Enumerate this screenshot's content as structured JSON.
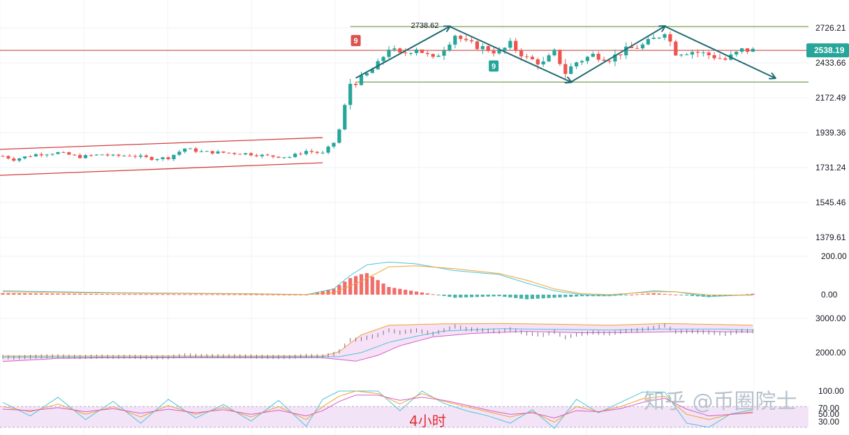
{
  "colors": {
    "up": "#26a69a",
    "down": "#ef5350",
    "channel": "#d23f3f",
    "range": "#5b8a2c",
    "current_line": "#c0392b",
    "arrow": "#1f6b73",
    "price_badge": "#26a69a",
    "td_red": "#d9534f",
    "td_green": "#26a69a",
    "macd_fast": "#4ec3d8",
    "macd_slow": "#f0a12e",
    "boll_upper": "#f0a12e",
    "boll_mid": "#4ec3d8",
    "boll_lower": "#d35fc9",
    "boll_fill": "#f4d9f4",
    "kdj_k": "#4ec3d8",
    "kdj_d": "#f0a12e",
    "kdj_j": "#d35fc9",
    "rsi_band": "#f3e3f7"
  },
  "chart_data": [
    {
      "type": "candlestick",
      "title": "",
      "timeframe_label": "4小时",
      "y_ticks": [
        "2726.21",
        "2433.66",
        "2172.49",
        "1939.36",
        "1731.24",
        "1545.46",
        "1379.61"
      ],
      "current_price": "2538.19",
      "high_annotation": "2738.62",
      "td_markers": [
        {
          "label": "9",
          "color": "red",
          "bar": 64,
          "price": 2620
        },
        {
          "label": "9",
          "color": "green",
          "bar": 89,
          "price": 2410
        }
      ],
      "levels": {
        "resistance": 2738,
        "support": 2290,
        "current": 2538.19
      },
      "early_channel": {
        "upper_start": 1840,
        "upper_end": 1910,
        "lower_start": 1690,
        "lower_end": 1760
      },
      "path_points": [
        [
          64,
          2320
        ],
        [
          81,
          2738
        ],
        [
          103,
          2290
        ],
        [
          120,
          2740
        ],
        [
          140,
          2320
        ]
      ],
      "series_anchors": [
        [
          0,
          1800
        ],
        [
          2,
          1780
        ],
        [
          6,
          1810
        ],
        [
          10,
          1820
        ],
        [
          14,
          1795
        ],
        [
          18,
          1810
        ],
        [
          20,
          1800
        ],
        [
          23,
          1805
        ],
        [
          27,
          1785
        ],
        [
          30,
          1790
        ],
        [
          33,
          1845
        ],
        [
          36,
          1825
        ],
        [
          40,
          1820
        ],
        [
          44,
          1815
        ],
        [
          48,
          1800
        ],
        [
          52,
          1795
        ],
        [
          55,
          1830
        ],
        [
          58,
          1815
        ],
        [
          60,
          1880
        ],
        [
          61,
          1960
        ],
        [
          62,
          2120
        ],
        [
          63,
          2280
        ],
        [
          65,
          2310
        ],
        [
          68,
          2420
        ],
        [
          70,
          2560
        ],
        [
          72,
          2500
        ],
        [
          75,
          2560
        ],
        [
          78,
          2460
        ],
        [
          80,
          2560
        ],
        [
          82,
          2670
        ],
        [
          84,
          2600
        ],
        [
          87,
          2560
        ],
        [
          90,
          2520
        ],
        [
          92,
          2590
        ],
        [
          95,
          2470
        ],
        [
          98,
          2430
        ],
        [
          100,
          2520
        ],
        [
          102,
          2360
        ],
        [
          104,
          2440
        ],
        [
          107,
          2500
        ],
        [
          110,
          2470
        ],
        [
          113,
          2540
        ],
        [
          116,
          2580
        ],
        [
          119,
          2660
        ],
        [
          120,
          2700
        ],
        [
          122,
          2520
        ],
        [
          125,
          2530
        ],
        [
          128,
          2500
        ],
        [
          131,
          2460
        ],
        [
          134,
          2540
        ],
        [
          136,
          2538
        ]
      ],
      "bar_count": 137
    },
    {
      "type": "line",
      "name": "MACD",
      "y_ticks": [
        "200.00",
        "0.00"
      ],
      "series_anchors": {
        "fast": [
          [
            0,
            20
          ],
          [
            20,
            10
          ],
          [
            45,
            5
          ],
          [
            55,
            0
          ],
          [
            60,
            30
          ],
          [
            63,
            100
          ],
          [
            66,
            155
          ],
          [
            70,
            170
          ],
          [
            75,
            160
          ],
          [
            82,
            125
          ],
          [
            90,
            105
          ],
          [
            95,
            60
          ],
          [
            100,
            20
          ],
          [
            105,
            0
          ],
          [
            110,
            -5
          ],
          [
            118,
            20
          ],
          [
            122,
            15
          ],
          [
            128,
            -10
          ],
          [
            136,
            0
          ]
        ],
        "slow": [
          [
            0,
            15
          ],
          [
            20,
            8
          ],
          [
            45,
            4
          ],
          [
            55,
            0
          ],
          [
            60,
            10
          ],
          [
            65,
            70
          ],
          [
            70,
            145
          ],
          [
            75,
            150
          ],
          [
            82,
            135
          ],
          [
            90,
            110
          ],
          [
            95,
            75
          ],
          [
            100,
            30
          ],
          [
            105,
            5
          ],
          [
            110,
            0
          ],
          [
            118,
            15
          ],
          [
            122,
            15
          ],
          [
            128,
            -2
          ],
          [
            136,
            -3
          ]
        ]
      }
    },
    {
      "type": "line",
      "name": "BOLL",
      "y_ticks": [
        "3000.00",
        "2000.00"
      ],
      "series_anchors": {
        "upper": [
          [
            0,
            1900
          ],
          [
            20,
            1900
          ],
          [
            58,
            1900
          ],
          [
            61,
            2030
          ],
          [
            65,
            2520
          ],
          [
            70,
            2800
          ],
          [
            80,
            2840
          ],
          [
            90,
            2850
          ],
          [
            100,
            2830
          ],
          [
            110,
            2800
          ],
          [
            120,
            2850
          ],
          [
            130,
            2820
          ],
          [
            136,
            2800
          ]
        ],
        "mid": [
          [
            0,
            1870
          ],
          [
            20,
            1865
          ],
          [
            58,
            1880
          ],
          [
            61,
            1880
          ],
          [
            65,
            2000
          ],
          [
            70,
            2300
          ],
          [
            75,
            2480
          ],
          [
            80,
            2630
          ],
          [
            90,
            2700
          ],
          [
            100,
            2680
          ],
          [
            110,
            2660
          ],
          [
            120,
            2690
          ],
          [
            130,
            2690
          ],
          [
            136,
            2660
          ]
        ],
        "lower": [
          [
            0,
            1740
          ],
          [
            10,
            1830
          ],
          [
            20,
            1850
          ],
          [
            58,
            1850
          ],
          [
            61,
            1800
          ],
          [
            64,
            1750
          ],
          [
            68,
            1920
          ],
          [
            72,
            2200
          ],
          [
            78,
            2460
          ],
          [
            85,
            2560
          ],
          [
            95,
            2620
          ],
          [
            105,
            2580
          ],
          [
            115,
            2590
          ],
          [
            125,
            2620
          ],
          [
            136,
            2600
          ]
        ]
      }
    },
    {
      "type": "line",
      "name": "KDJ",
      "y_ticks": [
        "100.00",
        "70.00",
        "50.00",
        "30.00"
      ],
      "series_anchors": {
        "k": [
          [
            0,
            70
          ],
          [
            5,
            60
          ],
          [
            10,
            75
          ],
          [
            15,
            55
          ],
          [
            20,
            70
          ],
          [
            25,
            50
          ],
          [
            30,
            72
          ],
          [
            35,
            55
          ],
          [
            40,
            68
          ],
          [
            45,
            50
          ],
          [
            50,
            70
          ],
          [
            55,
            45
          ],
          [
            58,
            70
          ],
          [
            61,
            90
          ],
          [
            64,
            100
          ],
          [
            68,
            95
          ],
          [
            72,
            75
          ],
          [
            76,
            95
          ],
          [
            80,
            80
          ],
          [
            84,
            70
          ],
          [
            88,
            60
          ],
          [
            92,
            50
          ],
          [
            96,
            60
          ],
          [
            100,
            40
          ],
          [
            104,
            70
          ],
          [
            108,
            60
          ],
          [
            112,
            70
          ],
          [
            116,
            85
          ],
          [
            120,
            90
          ],
          [
            124,
            55
          ],
          [
            128,
            45
          ],
          [
            132,
            55
          ],
          [
            136,
            60
          ]
        ],
        "d": [
          [
            0,
            65
          ],
          [
            5,
            62
          ],
          [
            10,
            68
          ],
          [
            15,
            60
          ],
          [
            20,
            66
          ],
          [
            25,
            57
          ],
          [
            30,
            65
          ],
          [
            35,
            58
          ],
          [
            40,
            64
          ],
          [
            45,
            55
          ],
          [
            50,
            63
          ],
          [
            55,
            52
          ],
          [
            58,
            62
          ],
          [
            61,
            80
          ],
          [
            64,
            92
          ],
          [
            68,
            92
          ],
          [
            72,
            82
          ],
          [
            76,
            88
          ],
          [
            80,
            82
          ],
          [
            84,
            73
          ],
          [
            88,
            63
          ],
          [
            92,
            55
          ],
          [
            96,
            58
          ],
          [
            100,
            48
          ],
          [
            104,
            62
          ],
          [
            108,
            60
          ],
          [
            112,
            66
          ],
          [
            116,
            78
          ],
          [
            120,
            86
          ],
          [
            124,
            65
          ],
          [
            128,
            52
          ],
          [
            132,
            55
          ],
          [
            136,
            58
          ]
        ],
        "j": [
          [
            0,
            78
          ],
          [
            5,
            52
          ],
          [
            10,
            88
          ],
          [
            15,
            45
          ],
          [
            20,
            80
          ],
          [
            25,
            38
          ],
          [
            30,
            84
          ],
          [
            35,
            48
          ],
          [
            40,
            74
          ],
          [
            45,
            42
          ],
          [
            50,
            82
          ],
          [
            55,
            32
          ],
          [
            58,
            84
          ],
          [
            61,
            100
          ],
          [
            64,
            100
          ],
          [
            68,
            100
          ],
          [
            72,
            62
          ],
          [
            76,
            100
          ],
          [
            80,
            76
          ],
          [
            84,
            62
          ],
          [
            88,
            52
          ],
          [
            92,
            38
          ],
          [
            96,
            64
          ],
          [
            100,
            28
          ],
          [
            104,
            84
          ],
          [
            108,
            58
          ],
          [
            112,
            78
          ],
          [
            116,
            98
          ],
          [
            120,
            98
          ],
          [
            124,
            38
          ],
          [
            128,
            30
          ],
          [
            132,
            56
          ],
          [
            136,
            64
          ]
        ]
      }
    }
  ],
  "watermark": "知乎 @币圈院士"
}
